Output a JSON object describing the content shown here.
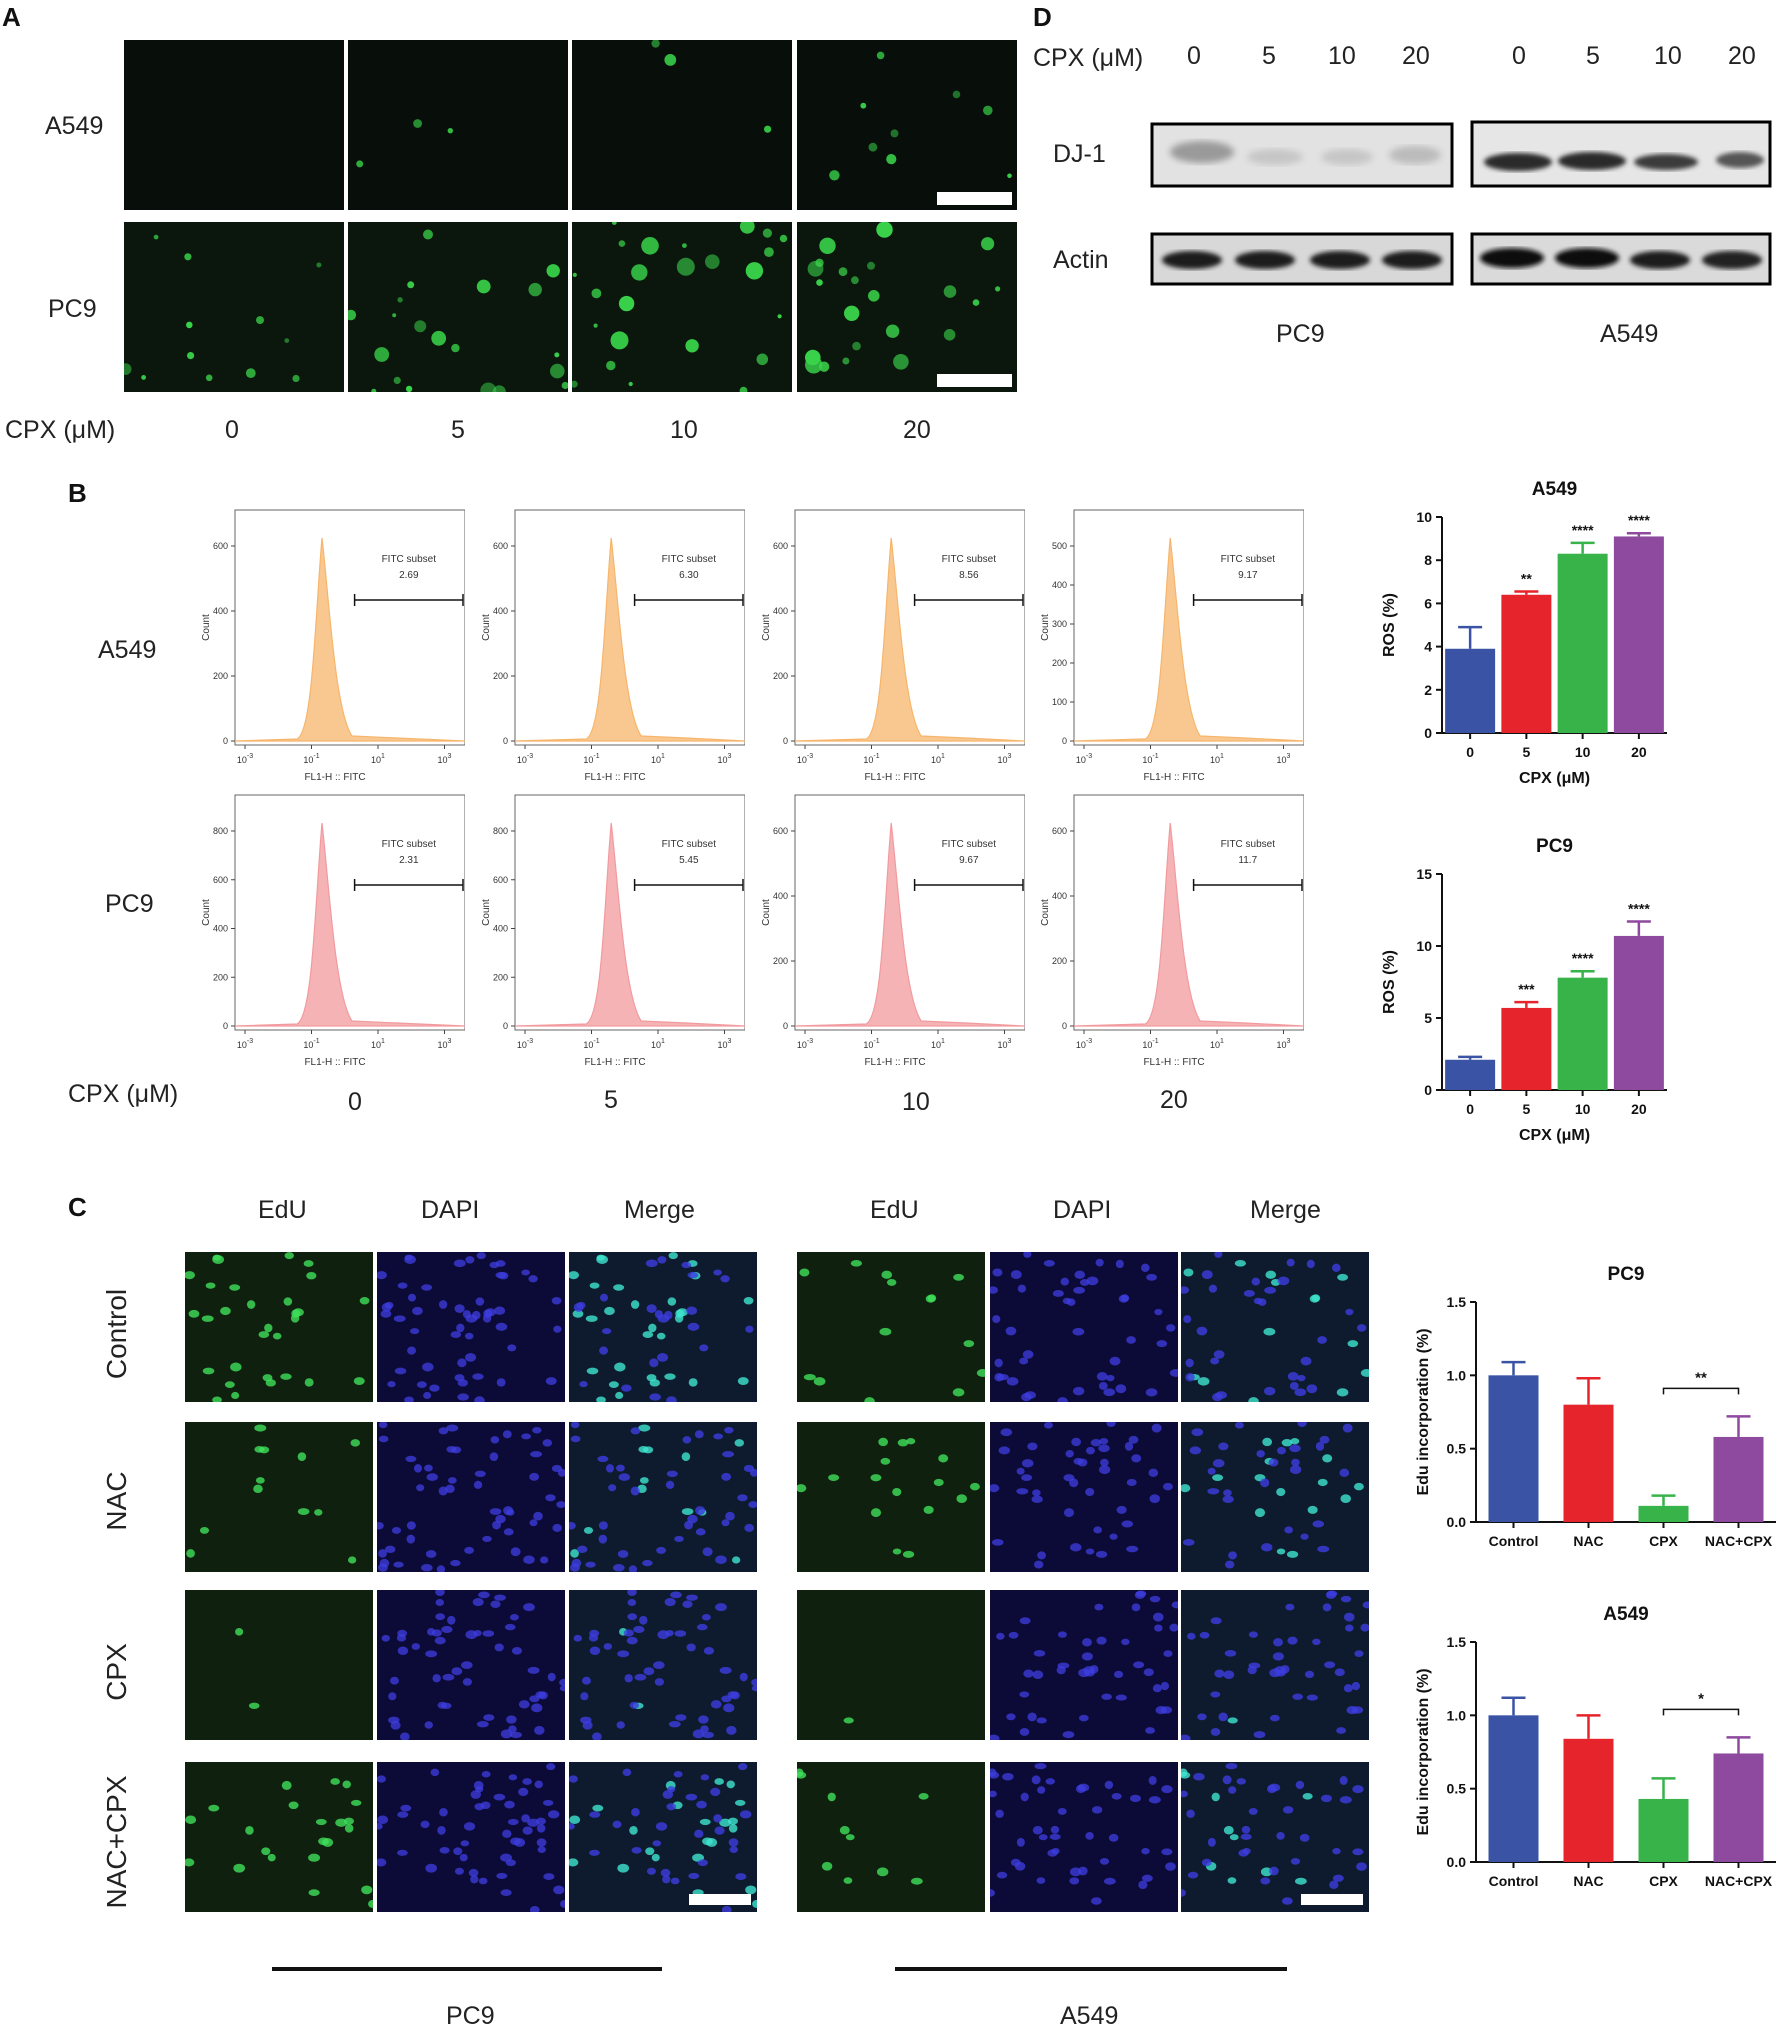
{
  "panels": {
    "A": "A",
    "B": "B",
    "C": "C",
    "D": "D"
  },
  "panelA": {
    "rows": [
      "A549",
      "PC9"
    ],
    "conc_label": "CPX (μM)",
    "concentrations": [
      "0",
      "5",
      "10",
      "20"
    ],
    "fluor_color": "#39d34a"
  },
  "panelB": {
    "rows": [
      "A549",
      "PC9"
    ],
    "conc_label": "CPX (μM)",
    "concentrations": [
      "0",
      "5",
      "10",
      "20"
    ],
    "gate_name": "FITC subset",
    "xaxis_label": "FL1-H :: FITC",
    "yaxis_label": "Count",
    "x_ticks": [
      "10^-3",
      "10^-1",
      "10^1",
      "10^3"
    ],
    "hist_colors": {
      "A549": "#f7b56b",
      "PC9": "#f29a9e"
    },
    "histograms": [
      {
        "row": "A549",
        "conc": "0",
        "value": "2.69",
        "yticks": [
          "0",
          "200",
          "400",
          "600"
        ]
      },
      {
        "row": "A549",
        "conc": "5",
        "value": "6.30",
        "yticks": [
          "0",
          "200",
          "400",
          "600"
        ]
      },
      {
        "row": "A549",
        "conc": "10",
        "value": "8.56",
        "yticks": [
          "0",
          "200",
          "400",
          "600"
        ]
      },
      {
        "row": "A549",
        "conc": "20",
        "value": "9.17",
        "yticks": [
          "0",
          "100",
          "200",
          "300",
          "400",
          "500"
        ]
      },
      {
        "row": "PC9",
        "conc": "0",
        "value": "2.31",
        "yticks": [
          "0",
          "200",
          "400",
          "600",
          "800"
        ]
      },
      {
        "row": "PC9",
        "conc": "5",
        "value": "5.45",
        "yticks": [
          "0",
          "200",
          "400",
          "600",
          "800"
        ]
      },
      {
        "row": "PC9",
        "conc": "10",
        "value": "9.67",
        "yticks": [
          "0",
          "200",
          "400",
          "600"
        ]
      },
      {
        "row": "PC9",
        "conc": "20",
        "value": "11.7",
        "yticks": [
          "0",
          "200",
          "400",
          "600"
        ]
      }
    ]
  },
  "panelC": {
    "columns": [
      "EdU",
      "DAPI",
      "Merge"
    ],
    "rows": [
      "Control",
      "NAC",
      "CPX",
      "NAC+CPX"
    ],
    "groups": [
      "PC9",
      "A549"
    ]
  },
  "panelD": {
    "conc_label": "CPX (μM)",
    "concentrations": [
      "0",
      "5",
      "10",
      "20",
      "0",
      "5",
      "10",
      "20"
    ],
    "rows": [
      "DJ-1",
      "Actin"
    ],
    "groups": [
      "PC9",
      "A549"
    ]
  },
  "chart_data": [
    {
      "type": "bar",
      "title": "A549",
      "xlabel": "CPX (μM)",
      "ylabel": "ROS (%)",
      "categories": [
        "0",
        "5",
        "10",
        "20"
      ],
      "values": [
        3.9,
        6.4,
        8.3,
        9.1
      ],
      "errors": [
        1.0,
        0.15,
        0.5,
        0.15
      ],
      "significance": [
        "",
        "**",
        "****",
        "****"
      ],
      "ylim": [
        0,
        10
      ],
      "yticks": [
        "0",
        "2",
        "4",
        "6",
        "8",
        "10"
      ],
      "colors": [
        "#3a53a4",
        "#e6242b",
        "#37b34a",
        "#8e4a9e"
      ]
    },
    {
      "type": "bar",
      "title": "PC9",
      "xlabel": "CPX (μM)",
      "ylabel": "ROS (%)",
      "categories": [
        "0",
        "5",
        "10",
        "20"
      ],
      "values": [
        2.1,
        5.7,
        7.8,
        10.7
      ],
      "errors": [
        0.2,
        0.4,
        0.45,
        1.0
      ],
      "significance": [
        "",
        "***",
        "****",
        "****"
      ],
      "ylim": [
        0,
        15
      ],
      "yticks": [
        "0",
        "5",
        "10",
        "15"
      ],
      "colors": [
        "#3a53a4",
        "#e6242b",
        "#37b34a",
        "#8e4a9e"
      ]
    },
    {
      "type": "bar",
      "title": "PC9",
      "xlabel": "",
      "ylabel": "Edu incorporation (%)",
      "categories": [
        "Control",
        "NAC",
        "CPX",
        "NAC+CPX"
      ],
      "values": [
        1.0,
        0.8,
        0.11,
        0.58
      ],
      "errors": [
        0.09,
        0.18,
        0.07,
        0.14
      ],
      "comparison": {
        "from": 2,
        "to": 3,
        "label": "**"
      },
      "ylim": [
        0,
        1.5
      ],
      "yticks": [
        "0.0",
        "0.5",
        "1.0",
        "1.5"
      ],
      "colors": [
        "#3a53a4",
        "#e6242b",
        "#37b34a",
        "#8e4a9e"
      ]
    },
    {
      "type": "bar",
      "title": "A549",
      "xlabel": "",
      "ylabel": "Edu incorporation (%)",
      "categories": [
        "Control",
        "NAC",
        "CPX",
        "NAC+CPX"
      ],
      "values": [
        1.0,
        0.84,
        0.43,
        0.74
      ],
      "errors": [
        0.12,
        0.16,
        0.14,
        0.11
      ],
      "comparison": {
        "from": 2,
        "to": 3,
        "label": "*"
      },
      "ylim": [
        0,
        1.5
      ],
      "yticks": [
        "0.0",
        "0.5",
        "1.0",
        "1.5"
      ],
      "colors": [
        "#3a53a4",
        "#e6242b",
        "#37b34a",
        "#8e4a9e"
      ]
    }
  ]
}
